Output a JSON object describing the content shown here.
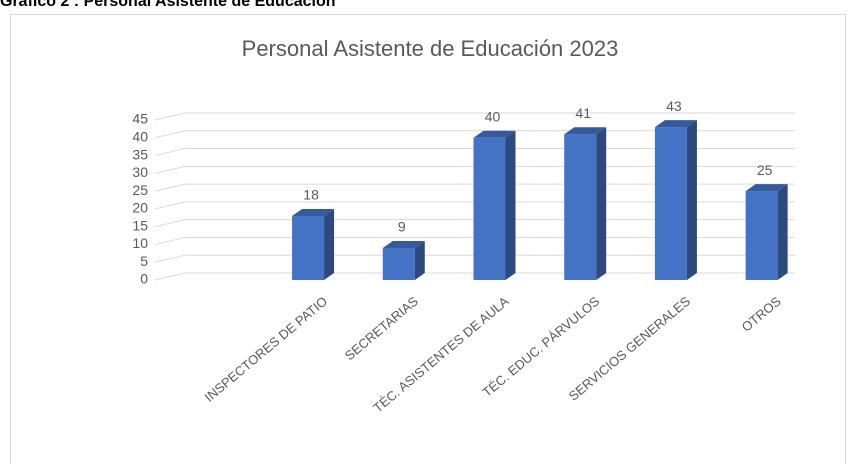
{
  "caption": "Gráfico 2 : Personal Asistente de Educación",
  "chart_data": {
    "type": "bar3d",
    "title": "Personal Asistente de Educación 2023",
    "categories": [
      null,
      "INSPECTORES DE PATIO",
      "SECRETARIAS",
      "TÉC. ASISTENTES DE AULA",
      "TÉC. EDUC. PÁRVULOS",
      "SERVICIOS GENERALES",
      "OTROS"
    ],
    "values": [
      null,
      18,
      9,
      40,
      41,
      43,
      25
    ],
    "color": "#4472c4",
    "ylim": [
      0,
      45
    ],
    "yticks": [
      0,
      5,
      10,
      15,
      20,
      25,
      30,
      35,
      40,
      45
    ],
    "grid": true
  }
}
